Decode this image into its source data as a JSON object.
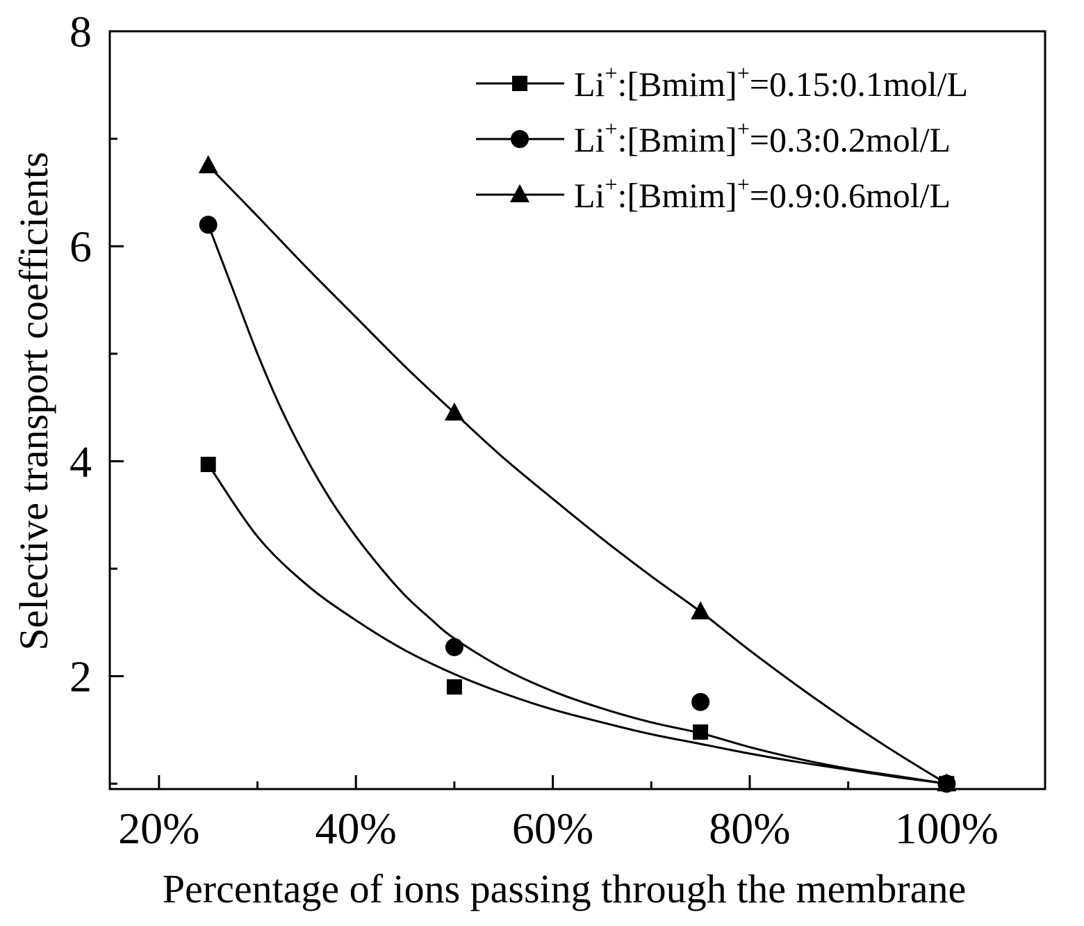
{
  "chart_data": {
    "type": "line",
    "xlabel": "Percentage of ions passing through the membrane",
    "ylabel": "Selective transport coefficients",
    "xlim": [
      15,
      110
    ],
    "ylim": [
      0.95,
      8
    ],
    "x_ticks": [
      20,
      40,
      60,
      80,
      100
    ],
    "x_tick_labels": [
      "20%",
      "40%",
      "60%",
      "80%",
      "100%"
    ],
    "y_ticks": [
      2,
      4,
      6,
      8
    ],
    "y_tick_labels": [
      "2",
      "4",
      "6",
      "8"
    ],
    "legend_position": "top-right",
    "series": [
      {
        "name": "Li+:[Bmim]+=0.15:0.1mol/L",
        "legend": {
          "base": "Li",
          "sup1": "+",
          "mid": ":[Bmim]",
          "sup2": "+",
          "tail": "=0.15:0.1mol/L"
        },
        "marker": "square",
        "x": [
          25,
          50,
          75,
          100
        ],
        "y": [
          3.97,
          1.9,
          1.48,
          1.0
        ]
      },
      {
        "name": "Li+:[Bmim]+=0.3:0.2mol/L",
        "legend": {
          "base": "Li",
          "sup1": "+",
          "mid": ":[Bmim]",
          "sup2": "+",
          "tail": "=0.3:0.2mol/L"
        },
        "marker": "circle",
        "x": [
          25,
          50,
          75,
          100
        ],
        "y": [
          6.2,
          2.27,
          1.76,
          1.0
        ]
      },
      {
        "name": "Li+:[Bmim]+=0.9:0.6mol/L",
        "legend": {
          "base": "Li",
          "sup1": "+",
          "mid": ":[Bmim]",
          "sup2": "+",
          "tail": "=0.9:0.6mol/L"
        },
        "marker": "triangle",
        "x": [
          25,
          50,
          75,
          100
        ],
        "y": [
          6.75,
          4.45,
          2.6,
          1.0
        ]
      }
    ],
    "fit_curves": [
      {
        "series": 0,
        "x": [
          25,
          30,
          35,
          40,
          45,
          50,
          55,
          60,
          65,
          70,
          75,
          80,
          85,
          90,
          95,
          100
        ],
        "y": [
          3.97,
          3.3,
          2.85,
          2.52,
          2.24,
          2.02,
          1.84,
          1.69,
          1.57,
          1.46,
          1.37,
          1.28,
          1.2,
          1.13,
          1.06,
          1.0
        ]
      },
      {
        "series": 1,
        "x": [
          25,
          27.5,
          30,
          32.5,
          35,
          37.5,
          40,
          42.5,
          45,
          47.5,
          50,
          55,
          60,
          65,
          70,
          75,
          80,
          85,
          90,
          95,
          100
        ],
        "y": [
          6.2,
          5.6,
          5.0,
          4.47,
          4.02,
          3.63,
          3.3,
          3.01,
          2.75,
          2.54,
          2.35,
          2.07,
          1.86,
          1.7,
          1.57,
          1.47,
          1.34,
          1.23,
          1.14,
          1.07,
          1.0
        ]
      },
      {
        "series": 2,
        "x": [
          25,
          30,
          35,
          40,
          45,
          50,
          55,
          60,
          65,
          70,
          75,
          80,
          85,
          90,
          95,
          100
        ],
        "y": [
          6.75,
          6.28,
          5.8,
          5.34,
          4.88,
          4.45,
          4.03,
          3.65,
          3.28,
          2.93,
          2.6,
          2.24,
          1.9,
          1.58,
          1.28,
          1.0
        ]
      }
    ]
  }
}
